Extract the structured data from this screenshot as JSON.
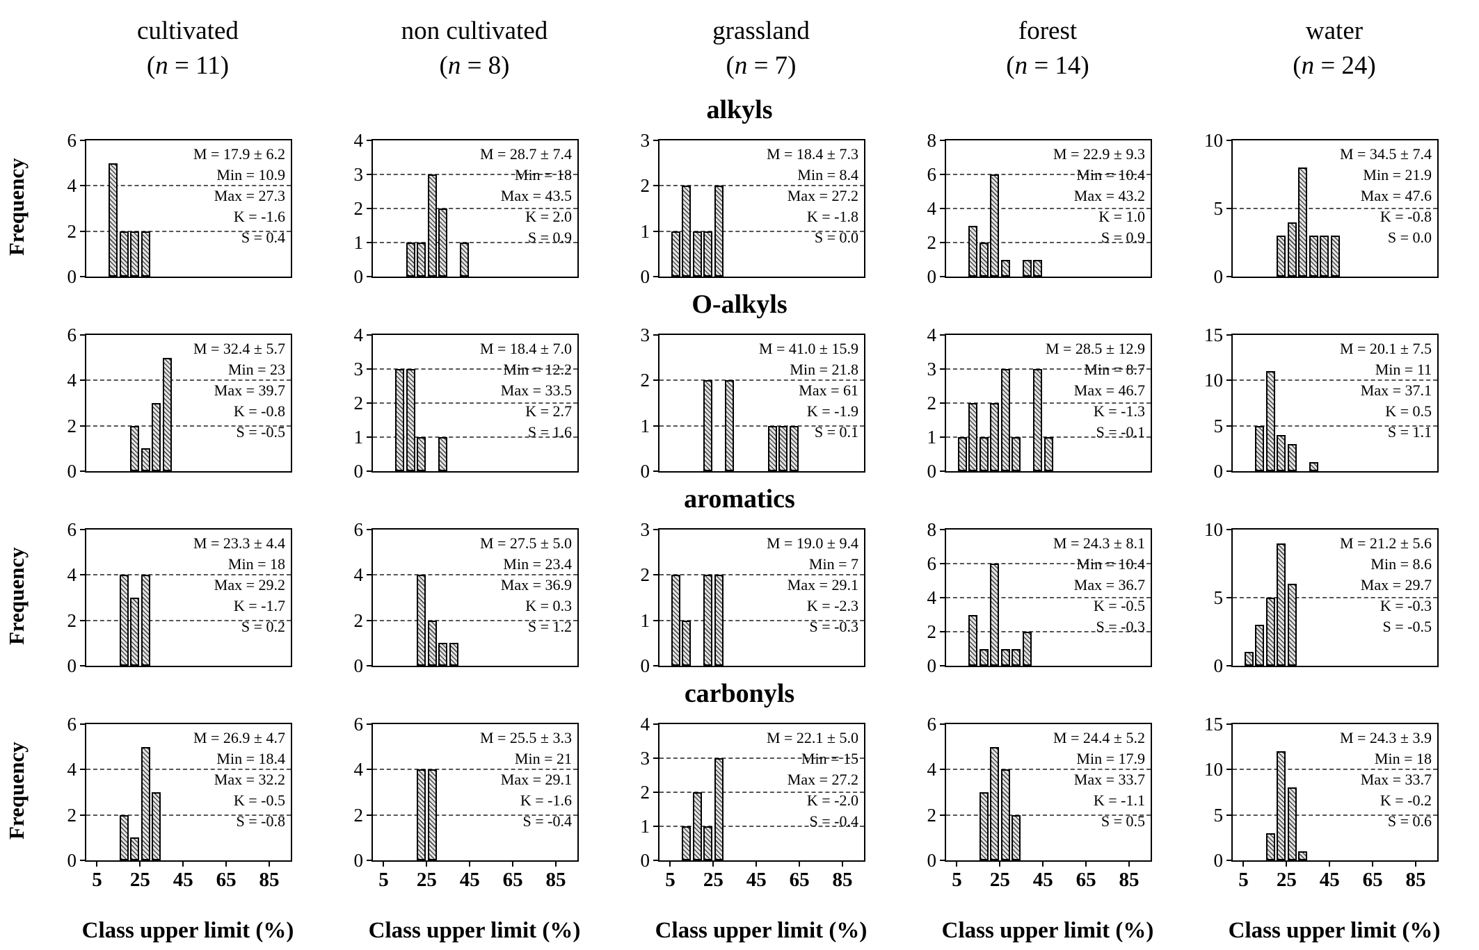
{
  "figure": {
    "ylabel": "Frequency",
    "xlabel": "Class upper limit (%)",
    "x_ticks": [
      5,
      25,
      45,
      65,
      85
    ],
    "x_range": [
      0,
      95
    ]
  },
  "columns": [
    {
      "label": "cultivated",
      "n": 11,
      "n_label": "(n = 11)"
    },
    {
      "label": "non cultivated",
      "n": 8,
      "n_label": "(n = 8)"
    },
    {
      "label": "grassland",
      "n": 7,
      "n_label": "(n = 7)"
    },
    {
      "label": "forest",
      "n": 14,
      "n_label": "(n = 14)"
    },
    {
      "label": "water",
      "n": 24,
      "n_label": "(n = 24)"
    }
  ],
  "rows": [
    {
      "title": "alkyls",
      "show_ylabel": true
    },
    {
      "title": "O-alkyls",
      "show_ylabel": false
    },
    {
      "title": "aromatics",
      "show_ylabel": true
    },
    {
      "title": "carbonyls",
      "show_ylabel": true
    }
  ],
  "chart_data": [
    {
      "type": "bar",
      "row": "alkyls",
      "column": "cultivated",
      "y_max": 6,
      "y_ticks": [
        0,
        2,
        4,
        6
      ],
      "bars": [
        {
          "x": 15,
          "freq": 5
        },
        {
          "x": 20,
          "freq": 2
        },
        {
          "x": 25,
          "freq": 2
        },
        {
          "x": 30,
          "freq": 2
        }
      ],
      "stats_lines": [
        "M = 17.9 ± 6.2",
        "Min = 10.9",
        "Max = 27.3",
        "K = -1.6",
        "S = 0.4"
      ]
    },
    {
      "type": "bar",
      "row": "alkyls",
      "column": "non cultivated",
      "y_max": 4,
      "y_ticks": [
        0,
        1,
        2,
        3,
        4
      ],
      "bars": [
        {
          "x": 20,
          "freq": 1
        },
        {
          "x": 25,
          "freq": 1
        },
        {
          "x": 30,
          "freq": 3
        },
        {
          "x": 35,
          "freq": 2
        },
        {
          "x": 45,
          "freq": 1
        }
      ],
      "stats_lines": [
        "M = 28.7 ± 7.4",
        "Min = 18",
        "Max = 43.5",
        "K = 2.0",
        "S = 0.9"
      ]
    },
    {
      "type": "bar",
      "row": "alkyls",
      "column": "grassland",
      "y_max": 3,
      "y_ticks": [
        0,
        1,
        2,
        3
      ],
      "bars": [
        {
          "x": 10,
          "freq": 1
        },
        {
          "x": 15,
          "freq": 2
        },
        {
          "x": 20,
          "freq": 1
        },
        {
          "x": 25,
          "freq": 1
        },
        {
          "x": 30,
          "freq": 2
        }
      ],
      "stats_lines": [
        "M = 18.4 ± 7.3",
        "Min = 8.4",
        "Max = 27.2",
        "K = -1.8",
        "S = 0.0"
      ]
    },
    {
      "type": "bar",
      "row": "alkyls",
      "column": "forest",
      "y_max": 8,
      "y_ticks": [
        0,
        2,
        4,
        6,
        8
      ],
      "bars": [
        {
          "x": 15,
          "freq": 3
        },
        {
          "x": 20,
          "freq": 2
        },
        {
          "x": 25,
          "freq": 6
        },
        {
          "x": 30,
          "freq": 1
        },
        {
          "x": 40,
          "freq": 1
        },
        {
          "x": 45,
          "freq": 1
        }
      ],
      "stats_lines": [
        "M = 22.9 ± 9.3",
        "Min = 10.4",
        "Max = 43.2",
        "K = 1.0",
        "S = 0.9"
      ]
    },
    {
      "type": "bar",
      "row": "alkyls",
      "column": "water",
      "y_max": 10,
      "y_ticks": [
        0,
        5,
        10
      ],
      "bars": [
        {
          "x": 25,
          "freq": 3
        },
        {
          "x": 30,
          "freq": 4
        },
        {
          "x": 35,
          "freq": 8
        },
        {
          "x": 40,
          "freq": 3
        },
        {
          "x": 45,
          "freq": 3
        },
        {
          "x": 50,
          "freq": 3
        }
      ],
      "stats_lines": [
        "M = 34.5 ± 7.4",
        "Min = 21.9",
        "Max = 47.6",
        "K = -0.8",
        "S = 0.0"
      ]
    },
    {
      "type": "bar",
      "row": "O-alkyls",
      "column": "cultivated",
      "y_max": 6,
      "y_ticks": [
        0,
        2,
        4,
        6
      ],
      "bars": [
        {
          "x": 25,
          "freq": 2
        },
        {
          "x": 30,
          "freq": 1
        },
        {
          "x": 35,
          "freq": 3
        },
        {
          "x": 40,
          "freq": 5
        }
      ],
      "stats_lines": [
        "M = 32.4 ± 5.7",
        "Min = 23",
        "Max = 39.7",
        "K = -0.8",
        "S = -0.5"
      ]
    },
    {
      "type": "bar",
      "row": "O-alkyls",
      "column": "non cultivated",
      "y_max": 4,
      "y_ticks": [
        0,
        1,
        2,
        3,
        4
      ],
      "bars": [
        {
          "x": 15,
          "freq": 3
        },
        {
          "x": 20,
          "freq": 3
        },
        {
          "x": 25,
          "freq": 1
        },
        {
          "x": 35,
          "freq": 1
        }
      ],
      "stats_lines": [
        "M = 18.4 ± 7.0",
        "Min = 12.2",
        "Max = 33.5",
        "K = 2.7",
        "S = 1.6"
      ]
    },
    {
      "type": "bar",
      "row": "O-alkyls",
      "column": "grassland",
      "y_max": 3,
      "y_ticks": [
        0,
        1,
        2,
        3
      ],
      "bars": [
        {
          "x": 25,
          "freq": 2
        },
        {
          "x": 35,
          "freq": 2
        },
        {
          "x": 55,
          "freq": 1
        },
        {
          "x": 60,
          "freq": 1
        },
        {
          "x": 65,
          "freq": 1
        }
      ],
      "stats_lines": [
        "M = 41.0 ± 15.9",
        "Min = 21.8",
        "Max = 61",
        "K = -1.9",
        "S = 0.1"
      ]
    },
    {
      "type": "bar",
      "row": "O-alkyls",
      "column": "forest",
      "y_max": 4,
      "y_ticks": [
        0,
        1,
        2,
        3,
        4
      ],
      "bars": [
        {
          "x": 10,
          "freq": 1
        },
        {
          "x": 15,
          "freq": 2
        },
        {
          "x": 20,
          "freq": 1
        },
        {
          "x": 25,
          "freq": 2
        },
        {
          "x": 30,
          "freq": 3
        },
        {
          "x": 35,
          "freq": 1
        },
        {
          "x": 45,
          "freq": 3
        },
        {
          "x": 50,
          "freq": 1
        }
      ],
      "stats_lines": [
        "M = 28.5 ± 12.9",
        "Min = 8.7",
        "Max = 46.7",
        "K = -1.3",
        "S = -0.1"
      ]
    },
    {
      "type": "bar",
      "row": "O-alkyls",
      "column": "water",
      "y_max": 15,
      "y_ticks": [
        0,
        5,
        10,
        15
      ],
      "bars": [
        {
          "x": 15,
          "freq": 5
        },
        {
          "x": 20,
          "freq": 11
        },
        {
          "x": 25,
          "freq": 4
        },
        {
          "x": 30,
          "freq": 3
        },
        {
          "x": 40,
          "freq": 1
        }
      ],
      "stats_lines": [
        "M = 20.1 ± 7.5",
        "Min = 11",
        "Max = 37.1",
        "K = 0.5",
        "S = 1.1"
      ]
    },
    {
      "type": "bar",
      "row": "aromatics",
      "column": "cultivated",
      "y_max": 6,
      "y_ticks": [
        0,
        2,
        4,
        6
      ],
      "bars": [
        {
          "x": 20,
          "freq": 4
        },
        {
          "x": 25,
          "freq": 3
        },
        {
          "x": 30,
          "freq": 4
        }
      ],
      "stats_lines": [
        "M = 23.3 ± 4.4",
        "Min = 18",
        "Max = 29.2",
        "K = -1.7",
        "S = 0.2"
      ]
    },
    {
      "type": "bar",
      "row": "aromatics",
      "column": "non cultivated",
      "y_max": 6,
      "y_ticks": [
        0,
        2,
        4,
        6
      ],
      "bars": [
        {
          "x": 25,
          "freq": 4
        },
        {
          "x": 30,
          "freq": 2
        },
        {
          "x": 35,
          "freq": 1
        },
        {
          "x": 40,
          "freq": 1
        }
      ],
      "stats_lines": [
        "M = 27.5 ± 5.0",
        "Min = 23.4",
        "Max = 36.9",
        "K = 0.3",
        "S = 1.2"
      ]
    },
    {
      "type": "bar",
      "row": "aromatics",
      "column": "grassland",
      "y_max": 3,
      "y_ticks": [
        0,
        1,
        2,
        3
      ],
      "bars": [
        {
          "x": 10,
          "freq": 2
        },
        {
          "x": 15,
          "freq": 1
        },
        {
          "x": 25,
          "freq": 2
        },
        {
          "x": 30,
          "freq": 2
        }
      ],
      "stats_lines": [
        "M = 19.0 ± 9.4",
        "Min = 7",
        "Max = 29.1",
        "K = -2.3",
        "S = -0.3"
      ]
    },
    {
      "type": "bar",
      "row": "aromatics",
      "column": "forest",
      "y_max": 8,
      "y_ticks": [
        0,
        2,
        4,
        6,
        8
      ],
      "bars": [
        {
          "x": 15,
          "freq": 3
        },
        {
          "x": 20,
          "freq": 1
        },
        {
          "x": 25,
          "freq": 6
        },
        {
          "x": 30,
          "freq": 1
        },
        {
          "x": 35,
          "freq": 1
        },
        {
          "x": 40,
          "freq": 2
        }
      ],
      "stats_lines": [
        "M = 24.3 ± 8.1",
        "Min = 10.4",
        "Max = 36.7",
        "K = -0.5",
        "S = -0.3"
      ]
    },
    {
      "type": "bar",
      "row": "aromatics",
      "column": "water",
      "y_max": 10,
      "y_ticks": [
        0,
        5,
        10
      ],
      "bars": [
        {
          "x": 10,
          "freq": 1
        },
        {
          "x": 15,
          "freq": 3
        },
        {
          "x": 20,
          "freq": 5
        },
        {
          "x": 25,
          "freq": 9
        },
        {
          "x": 30,
          "freq": 6
        }
      ],
      "stats_lines": [
        "M = 21.2 ± 5.6",
        "Min = 8.6",
        "Max = 29.7",
        "K = -0.3",
        "S = -0.5"
      ]
    },
    {
      "type": "bar",
      "row": "carbonyls",
      "column": "cultivated",
      "y_max": 6,
      "y_ticks": [
        0,
        2,
        4,
        6
      ],
      "bars": [
        {
          "x": 20,
          "freq": 2
        },
        {
          "x": 25,
          "freq": 1
        },
        {
          "x": 30,
          "freq": 5
        },
        {
          "x": 35,
          "freq": 3
        }
      ],
      "stats_lines": [
        "M = 26.9 ± 4.7",
        "Min = 18.4",
        "Max = 32.2",
        "K = -0.5",
        "S = -0.8"
      ]
    },
    {
      "type": "bar",
      "row": "carbonyls",
      "column": "non cultivated",
      "y_max": 6,
      "y_ticks": [
        0,
        2,
        4,
        6
      ],
      "bars": [
        {
          "x": 25,
          "freq": 4
        },
        {
          "x": 30,
          "freq": 4
        }
      ],
      "stats_lines": [
        "M = 25.5 ± 3.3",
        "Min = 21",
        "Max = 29.1",
        "K = -1.6",
        "S = -0.4"
      ]
    },
    {
      "type": "bar",
      "row": "carbonyls",
      "column": "grassland",
      "y_max": 4,
      "y_ticks": [
        0,
        1,
        2,
        3,
        4
      ],
      "bars": [
        {
          "x": 15,
          "freq": 1
        },
        {
          "x": 20,
          "freq": 2
        },
        {
          "x": 25,
          "freq": 1
        },
        {
          "x": 30,
          "freq": 3
        }
      ],
      "stats_lines": [
        "M = 22.1 ± 5.0",
        "Min = 15",
        "Max = 27.2",
        "K = -2.0",
        "S = -0.4"
      ]
    },
    {
      "type": "bar",
      "row": "carbonyls",
      "column": "forest",
      "y_max": 6,
      "y_ticks": [
        0,
        2,
        4,
        6
      ],
      "bars": [
        {
          "x": 20,
          "freq": 3
        },
        {
          "x": 25,
          "freq": 5
        },
        {
          "x": 30,
          "freq": 4
        },
        {
          "x": 35,
          "freq": 2
        }
      ],
      "stats_lines": [
        "M = 24.4 ± 5.2",
        "Min = 17.9",
        "Max = 33.7",
        "K = -1.1",
        "S = 0.5"
      ]
    },
    {
      "type": "bar",
      "row": "carbonyls",
      "column": "water",
      "y_max": 15,
      "y_ticks": [
        0,
        5,
        10,
        15
      ],
      "bars": [
        {
          "x": 20,
          "freq": 3
        },
        {
          "x": 25,
          "freq": 12
        },
        {
          "x": 30,
          "freq": 8
        },
        {
          "x": 35,
          "freq": 1
        }
      ],
      "stats_lines": [
        "M = 24.3 ± 3.9",
        "Min = 18",
        "Max = 33.7",
        "K = -0.2",
        "S = 0.6"
      ]
    }
  ]
}
